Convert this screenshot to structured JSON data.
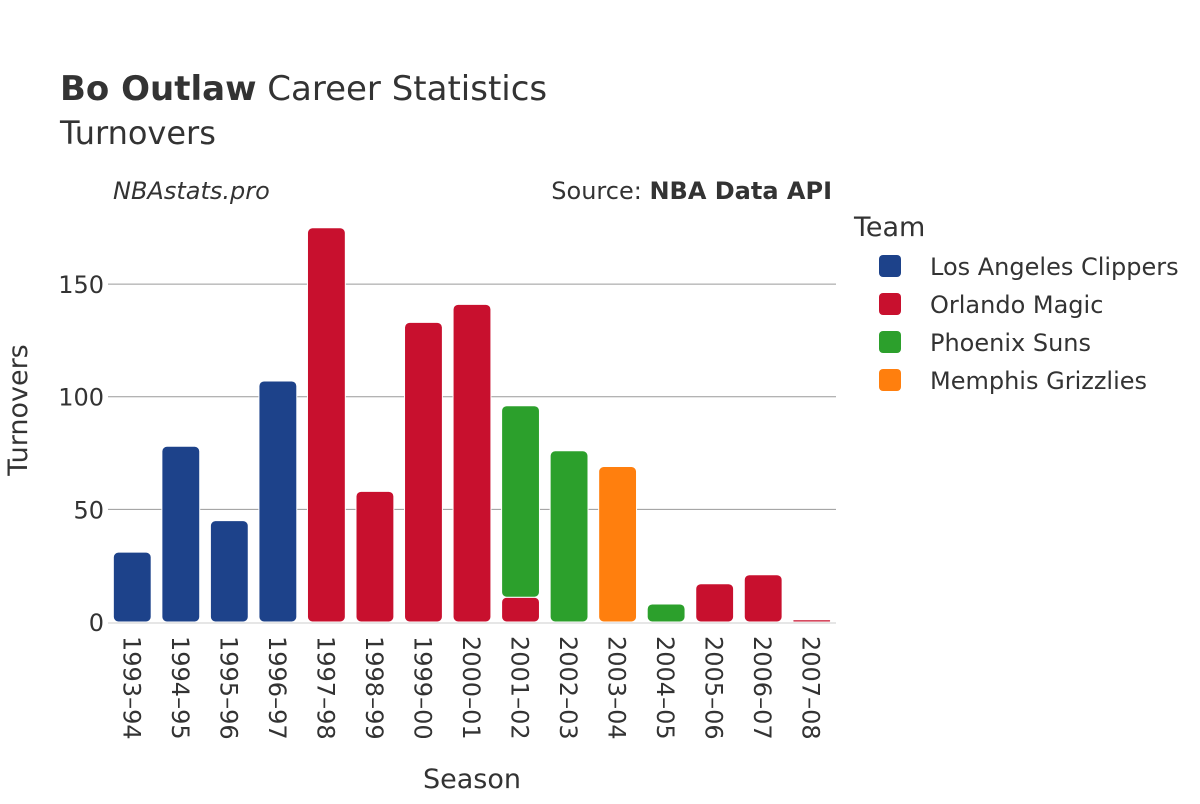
{
  "header": {
    "title_bold": "Bo Outlaw",
    "title_rest": " Career Statistics",
    "subtitle": "Turnovers"
  },
  "watermark": "NBAstats.pro",
  "source": {
    "prefix": "Source: ",
    "name": "NBA Data API"
  },
  "colors": {
    "Los Angeles Clippers": "#1d428a",
    "Orlando Magic": "#c8102e",
    "Phoenix Suns": "#2ca02c",
    "Memphis Grizzlies": "#ff7f0e"
  },
  "chart_data": {
    "type": "bar",
    "stacked": true,
    "xlabel": "Season",
    "ylabel": "Turnovers",
    "ylim": [
      0,
      182
    ],
    "yticks": [
      0,
      50,
      100,
      150
    ],
    "grid": true,
    "legend_title": "Team",
    "legend_position": "right",
    "categories": [
      "1993–94",
      "1994–95",
      "1995–96",
      "1996–97",
      "1997–98",
      "1998–99",
      "1999–00",
      "2000–01",
      "2001–02",
      "2002–03",
      "2003–04",
      "2004–05",
      "2005–06",
      "2006–07",
      "2007–08"
    ],
    "series": [
      {
        "name": "Los Angeles Clippers",
        "values": [
          31,
          78,
          45,
          107,
          0,
          0,
          0,
          0,
          0,
          0,
          0,
          0,
          0,
          0,
          0
        ]
      },
      {
        "name": "Orlando Magic",
        "values": [
          0,
          0,
          0,
          0,
          175,
          58,
          133,
          141,
          11,
          0,
          0,
          0,
          17,
          21,
          1
        ]
      },
      {
        "name": "Phoenix Suns",
        "values": [
          0,
          0,
          0,
          0,
          0,
          0,
          0,
          0,
          85,
          76,
          0,
          8,
          0,
          0,
          0
        ]
      },
      {
        "name": "Memphis Grizzlies",
        "values": [
          0,
          0,
          0,
          0,
          0,
          0,
          0,
          0,
          0,
          0,
          69,
          0,
          0,
          0,
          0
        ]
      }
    ]
  }
}
